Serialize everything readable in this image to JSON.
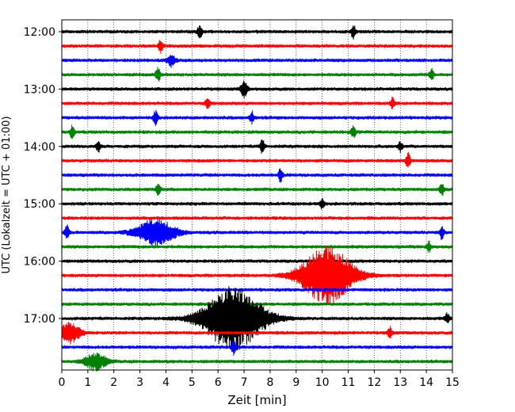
{
  "chart_data": {
    "type": "line",
    "title": "",
    "xlabel": "Zeit  [min]",
    "ylabel": "UTC (Lokalzeit = UTC + 01:00)",
    "xlim": [
      0,
      15
    ],
    "x_ticks": [
      "0",
      "1",
      "2",
      "3",
      "4",
      "5",
      "6",
      "7",
      "8",
      "9",
      "10",
      "11",
      "12",
      "13",
      "14",
      "15"
    ],
    "y_tick_labels": [
      "12:00",
      "13:00",
      "14:00",
      "15:00",
      "16:00",
      "17:00"
    ],
    "y_tick_traces": [
      0,
      4,
      8,
      12,
      16,
      20
    ],
    "grid": "vertical dotted at each minute",
    "trace_interval_minutes": 15,
    "trace_colors": [
      "#000000",
      "#ff0000",
      "#0000ff",
      "#008000"
    ],
    "traces": [
      {
        "start": "12:00",
        "color": "#000000"
      },
      {
        "start": "12:15",
        "color": "#ff0000"
      },
      {
        "start": "12:30",
        "color": "#0000ff"
      },
      {
        "start": "12:45",
        "color": "#008000"
      },
      {
        "start": "13:00",
        "color": "#000000"
      },
      {
        "start": "13:15",
        "color": "#ff0000"
      },
      {
        "start": "13:30",
        "color": "#0000ff"
      },
      {
        "start": "13:45",
        "color": "#008000"
      },
      {
        "start": "14:00",
        "color": "#000000"
      },
      {
        "start": "14:15",
        "color": "#ff0000"
      },
      {
        "start": "14:30",
        "color": "#0000ff"
      },
      {
        "start": "14:45",
        "color": "#008000"
      },
      {
        "start": "15:00",
        "color": "#000000"
      },
      {
        "start": "15:15",
        "color": "#ff0000"
      },
      {
        "start": "15:30",
        "color": "#0000ff"
      },
      {
        "start": "15:45",
        "color": "#008000"
      },
      {
        "start": "16:00",
        "color": "#000000"
      },
      {
        "start": "16:15",
        "color": "#ff0000"
      },
      {
        "start": "16:30",
        "color": "#0000ff"
      },
      {
        "start": "16:45",
        "color": "#008000"
      },
      {
        "start": "17:00",
        "color": "#000000"
      },
      {
        "start": "17:15",
        "color": "#ff0000"
      },
      {
        "start": "17:30",
        "color": "#0000ff"
      },
      {
        "start": "17:45",
        "color": "#008000"
      }
    ],
    "events": [
      {
        "trace": 0,
        "minute": 5.3,
        "amplitude": 0.5,
        "duration": 0.1
      },
      {
        "trace": 0,
        "minute": 11.2,
        "amplitude": 0.5,
        "duration": 0.1
      },
      {
        "trace": 1,
        "minute": 3.8,
        "amplitude": 0.5,
        "duration": 0.1
      },
      {
        "trace": 2,
        "minute": 4.2,
        "amplitude": 0.4,
        "duration": 0.2
      },
      {
        "trace": 3,
        "minute": 3.7,
        "amplitude": 0.5,
        "duration": 0.1
      },
      {
        "trace": 3,
        "minute": 14.2,
        "amplitude": 0.4,
        "duration": 0.1
      },
      {
        "trace": 4,
        "minute": 7.0,
        "amplitude": 0.55,
        "duration": 0.15
      },
      {
        "trace": 5,
        "minute": 5.6,
        "amplitude": 0.35,
        "duration": 0.1
      },
      {
        "trace": 5,
        "minute": 12.7,
        "amplitude": 0.35,
        "duration": 0.1
      },
      {
        "trace": 6,
        "minute": 3.6,
        "amplitude": 0.5,
        "duration": 0.1
      },
      {
        "trace": 6,
        "minute": 7.3,
        "amplitude": 0.4,
        "duration": 0.1
      },
      {
        "trace": 7,
        "minute": 0.4,
        "amplitude": 0.45,
        "duration": 0.1
      },
      {
        "trace": 7,
        "minute": 11.2,
        "amplitude": 0.4,
        "duration": 0.1
      },
      {
        "trace": 8,
        "minute": 1.4,
        "amplitude": 0.4,
        "duration": 0.1
      },
      {
        "trace": 8,
        "minute": 7.7,
        "amplitude": 0.5,
        "duration": 0.1
      },
      {
        "trace": 8,
        "minute": 13.0,
        "amplitude": 0.35,
        "duration": 0.1
      },
      {
        "trace": 9,
        "minute": 13.3,
        "amplitude": 0.55,
        "duration": 0.1
      },
      {
        "trace": 10,
        "minute": 8.4,
        "amplitude": 0.45,
        "duration": 0.1
      },
      {
        "trace": 11,
        "minute": 3.7,
        "amplitude": 0.4,
        "duration": 0.1
      },
      {
        "trace": 11,
        "minute": 14.6,
        "amplitude": 0.45,
        "duration": 0.1
      },
      {
        "trace": 12,
        "minute": 10.0,
        "amplitude": 0.35,
        "duration": 0.1
      },
      {
        "trace": 14,
        "minute": 0.2,
        "amplitude": 0.45,
        "duration": 0.1
      },
      {
        "trace": 14,
        "minute": 3.6,
        "amplitude": 0.9,
        "duration": 0.9
      },
      {
        "trace": 14,
        "minute": 14.6,
        "amplitude": 0.45,
        "duration": 0.1
      },
      {
        "trace": 15,
        "minute": 14.1,
        "amplitude": 0.35,
        "duration": 0.1
      },
      {
        "trace": 17,
        "minute": 10.2,
        "amplitude": 2.0,
        "duration": 1.2
      },
      {
        "trace": 20,
        "minute": 6.6,
        "amplitude": 2.2,
        "duration": 1.4
      },
      {
        "trace": 20,
        "minute": 14.8,
        "amplitude": 0.35,
        "duration": 0.1
      },
      {
        "trace": 21,
        "minute": 0.3,
        "amplitude": 0.7,
        "duration": 0.5
      },
      {
        "trace": 21,
        "minute": 12.6,
        "amplitude": 0.4,
        "duration": 0.1
      },
      {
        "trace": 22,
        "minute": 6.6,
        "amplitude": 0.5,
        "duration": 0.1
      },
      {
        "trace": 23,
        "minute": 1.3,
        "amplitude": 0.6,
        "duration": 0.5
      }
    ]
  }
}
